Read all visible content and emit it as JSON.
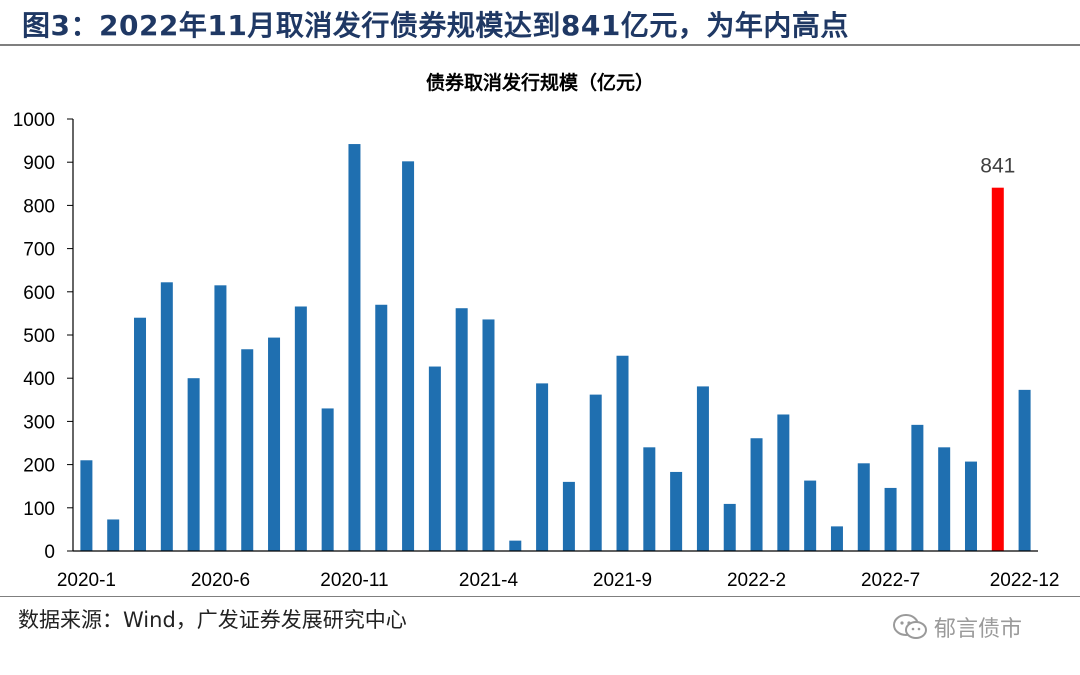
{
  "figure_title": "图3：2022年11月取消发行债券规模达到841亿元，为年内高点",
  "source_text": "数据来源：Wind，广发证券发展研究中心",
  "watermark_text": "郁言债市",
  "watermark_icon": "wechat-icon",
  "colors": {
    "bar": "#1f6fb0",
    "highlight": "#ff0000",
    "title": "#1f3864"
  },
  "chart_data": {
    "type": "bar",
    "title": "债券取消发行规模（亿元）",
    "xlabel": "",
    "ylabel": "",
    "ylim": [
      0,
      1000
    ],
    "yticks": [
      0,
      100,
      200,
      300,
      400,
      500,
      600,
      700,
      800,
      900,
      1000
    ],
    "grid": false,
    "categories": [
      "2020-1",
      "2020-2",
      "2020-3",
      "2020-4",
      "2020-5",
      "2020-6",
      "2020-7",
      "2020-8",
      "2020-9",
      "2020-10",
      "2020-11",
      "2020-12",
      "2021-1",
      "2021-2",
      "2021-3",
      "2021-4",
      "2021-5",
      "2021-6",
      "2021-7",
      "2021-8",
      "2021-9",
      "2021-10",
      "2021-11",
      "2021-12",
      "2022-1",
      "2022-2",
      "2022-3",
      "2022-4",
      "2022-5",
      "2022-6",
      "2022-7",
      "2022-8",
      "2022-9",
      "2022-10",
      "2022-11",
      "2022-12"
    ],
    "tick_labels": [
      "2020-1",
      "2020-6",
      "2020-11",
      "2021-4",
      "2021-9",
      "2022-2",
      "2022-7",
      "2022-12"
    ],
    "values": [
      210,
      73,
      540,
      622,
      400,
      615,
      467,
      494,
      566,
      330,
      942,
      570,
      902,
      427,
      562,
      536,
      24,
      388,
      160,
      362,
      452,
      240,
      183,
      381,
      109,
      261,
      316,
      163,
      57,
      203,
      146,
      292,
      240,
      207,
      841,
      373
    ],
    "highlight_index": 34,
    "annotation": "841"
  }
}
